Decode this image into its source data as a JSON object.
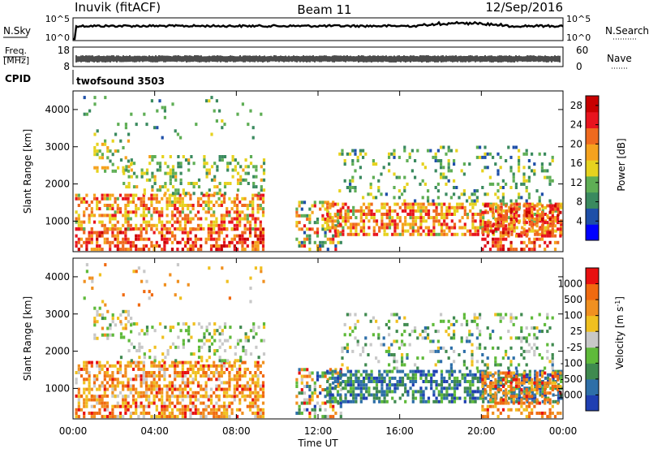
{
  "header": {
    "station": "Inuvik (fitACF)",
    "beam": "Beam 11",
    "date": "12/Sep/2016"
  },
  "nsky": {
    "label": "N.Sky",
    "right_label": "N.Search",
    "tick_top": "10^5",
    "tick_bottom": "10^0"
  },
  "freq": {
    "label_line1": "Freq.",
    "label_line2": "[MHz]",
    "tick_top": "18",
    "tick_bottom": "8",
    "right_label": "Nave",
    "right_tick_top": "60",
    "right_tick_bottom": "0"
  },
  "cpid": {
    "label": "CPID",
    "value": "twofsound 3503"
  },
  "chart_data": [
    {
      "type": "heatmap",
      "ylabel": "Slant Range [km]",
      "yticks": [
        "1000",
        "2000",
        "3000",
        "4000"
      ],
      "ylim": [
        180,
        4500
      ],
      "colorbar": {
        "label": "Power [dB]",
        "ticks": [
          "4",
          "8",
          "12",
          "16",
          "20",
          "24",
          "28"
        ],
        "range": [
          0,
          30
        ],
        "colors": [
          "#0000ff",
          "#1e4fa8",
          "#3a8a5f",
          "#5fae55",
          "#e6d21e",
          "#f5a21e",
          "#ef6a1e",
          "#e8141e",
          "#c80000"
        ]
      }
    },
    {
      "type": "heatmap",
      "ylabel": "Slant Range [km]",
      "yticks": [
        "1000",
        "2000",
        "3000",
        "4000"
      ],
      "ylim": [
        180,
        4500
      ],
      "xlabel": "Time UT",
      "xticks": [
        "00:00",
        "04:00",
        "08:00",
        "12:00",
        "16:00",
        "20:00",
        "00:00"
      ],
      "xlim": [
        0,
        24
      ],
      "colorbar": {
        "label": "Velocity [m s-1]",
        "ticks": [
          "1000",
          "500",
          "100",
          "25",
          "-25",
          "-100",
          "-500",
          "-1000"
        ],
        "colors": [
          "#1f3fb2",
          "#2e6fa8",
          "#3f8a4f",
          "#5fba3a",
          "#c8c8c8",
          "#f0c020",
          "#f09020",
          "#f06a10",
          "#e81010"
        ]
      }
    }
  ]
}
